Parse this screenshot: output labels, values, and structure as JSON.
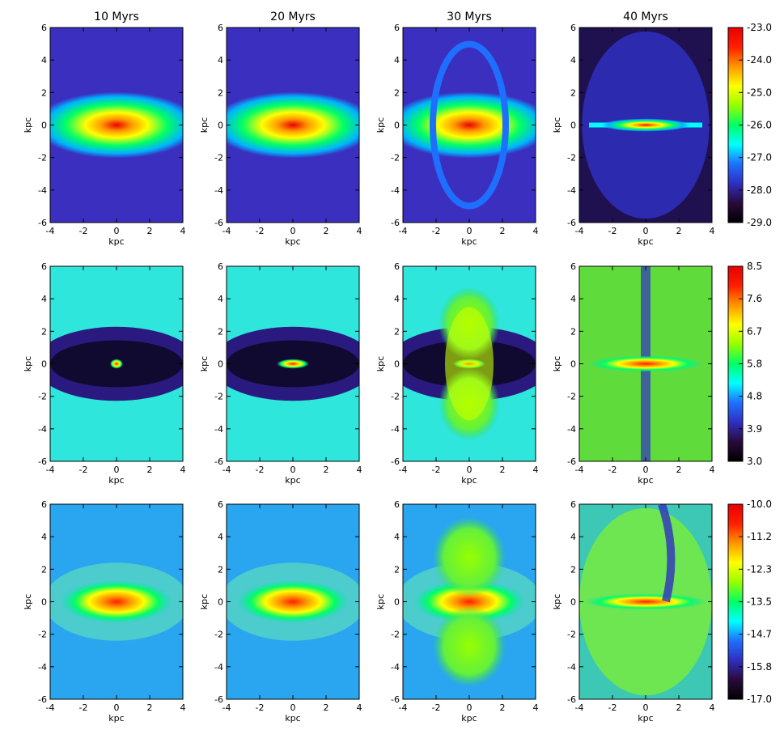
{
  "figure": {
    "column_titles": [
      "10 Myrs",
      "20 Myrs",
      "30 Myrs",
      "40 Myrs"
    ]
  },
  "chart_data": {
    "type": "heatmap",
    "layout": "3 rows x 4 columns of simulation snapshot maps",
    "xlabel": "kpc",
    "ylabel": "kpc",
    "xlim": [
      -4,
      4
    ],
    "ylim": [
      -6,
      6
    ],
    "x_ticks": [
      "-4",
      "-2",
      "0",
      "2",
      "4"
    ],
    "y_ticks": [
      "-6",
      "-4",
      "-2",
      "0",
      "2",
      "4",
      "6"
    ],
    "colormap": [
      "#000000",
      "#2a0a3c",
      "#2f2fc0",
      "#1f6fff",
      "#00ffff",
      "#00ff64",
      "#96ff00",
      "#ffff00",
      "#ff9600",
      "#ff1e00",
      "#e80000"
    ],
    "colorbars": [
      {
        "row": 1,
        "ticks": [
          "-23.0",
          "-24.0",
          "-25.0",
          "-26.0",
          "-27.0",
          "-28.0",
          "-29.0"
        ],
        "range": [
          -29.0,
          -23.0
        ]
      },
      {
        "row": 2,
        "ticks": [
          "8.5",
          "7.6",
          "6.7",
          "5.8",
          "4.8",
          "3.9",
          "3.0"
        ],
        "range": [
          3.0,
          8.5
        ]
      },
      {
        "row": 3,
        "ticks": [
          "-10.0",
          "-11.2",
          "-12.3",
          "-13.5",
          "-14.7",
          "-15.8",
          "-17.0"
        ],
        "range": [
          -17.0,
          -10.0
        ]
      }
    ]
  }
}
